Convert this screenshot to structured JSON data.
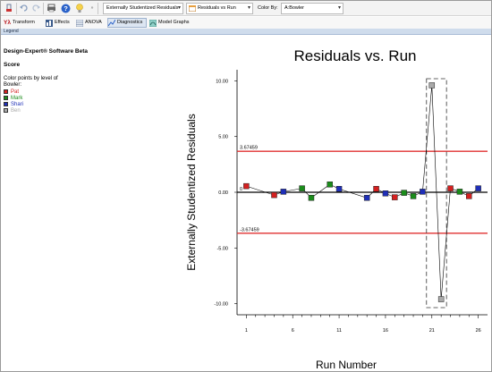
{
  "toolbar": {
    "residual_type": "Externally Studentized Residuals",
    "plot_type": "Residuals vs Run",
    "color_by_label": "Color By:",
    "color_by_value": "A:Bowler"
  },
  "tabs": [
    {
      "label": "Transform",
      "icon": "y-lambda-icon"
    },
    {
      "label": "Effects",
      "icon": "effects-icon"
    },
    {
      "label": "ANOVA",
      "icon": "anova-icon"
    },
    {
      "label": "Diagnostics",
      "icon": "diagnostics-icon"
    },
    {
      "label": "Model Graphs",
      "icon": "model-graphs-icon"
    }
  ],
  "legend_bar": "Legend",
  "left_panel": {
    "app_title": "Design-Expert® Software Beta",
    "response": "Score",
    "color_note_line1": "Color points by level of",
    "color_note_line2": "Bowler:",
    "levels": [
      {
        "name": "Pat",
        "color": "#d42020"
      },
      {
        "name": "Mark",
        "color": "#1a8c1a"
      },
      {
        "name": "Shari",
        "color": "#1f2fb8"
      },
      {
        "name": "Ben",
        "color": "#aaaaaa"
      }
    ]
  },
  "chart_data": {
    "type": "scatter",
    "title": "Residuals vs. Run",
    "xlabel": "Run Number",
    "ylabel": "Externally Studentized Residuals",
    "xlim": [
      0,
      27
    ],
    "ylim": [
      -11,
      11
    ],
    "xticks": [
      1,
      6,
      11,
      16,
      21,
      26
    ],
    "yticks": [
      10.0,
      5.0,
      0.0,
      -5.0,
      -10.0
    ],
    "ytick_labels": [
      "10.00",
      "5.00",
      "0.00",
      "-5.00",
      "-10.00"
    ],
    "limit_lines": [
      {
        "value": 3.67459,
        "label": "3.67459",
        "color": "#e03030"
      },
      {
        "value": -3.67459,
        "label": "-3.67459",
        "color": "#e03030"
      }
    ],
    "zero_line_label": "0",
    "highlight_box_runs": [
      21,
      22
    ],
    "points": [
      {
        "x": 1,
        "y": 0.55,
        "bowler": "Pat"
      },
      {
        "x": 4,
        "y": -0.25,
        "bowler": "Pat"
      },
      {
        "x": 5,
        "y": 0.05,
        "bowler": "Shari"
      },
      {
        "x": 7,
        "y": 0.35,
        "bowler": "Mark"
      },
      {
        "x": 8,
        "y": -0.5,
        "bowler": "Mark"
      },
      {
        "x": 10,
        "y": 0.7,
        "bowler": "Mark"
      },
      {
        "x": 11,
        "y": 0.3,
        "bowler": "Shari"
      },
      {
        "x": 14,
        "y": -0.5,
        "bowler": "Shari"
      },
      {
        "x": 15,
        "y": 0.3,
        "bowler": "Pat"
      },
      {
        "x": 16,
        "y": -0.1,
        "bowler": "Shari"
      },
      {
        "x": 17,
        "y": -0.45,
        "bowler": "Pat"
      },
      {
        "x": 18,
        "y": -0.05,
        "bowler": "Mark"
      },
      {
        "x": 19,
        "y": -0.35,
        "bowler": "Mark"
      },
      {
        "x": 20,
        "y": 0.05,
        "bowler": "Shari"
      },
      {
        "x": 21,
        "y": 9.6,
        "bowler": "Ben"
      },
      {
        "x": 22,
        "y": -9.6,
        "bowler": "Ben"
      },
      {
        "x": 23,
        "y": 0.35,
        "bowler": "Pat"
      },
      {
        "x": 24,
        "y": 0.05,
        "bowler": "Mark"
      },
      {
        "x": 25,
        "y": -0.35,
        "bowler": "Pat"
      },
      {
        "x": 26,
        "y": 0.35,
        "bowler": "Shari"
      }
    ]
  }
}
